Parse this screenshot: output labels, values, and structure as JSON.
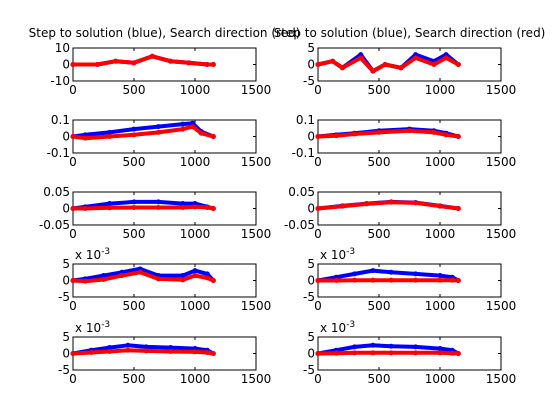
{
  "colors": {
    "step": "#0000ff",
    "direction": "#ff0000",
    "axis": "#000000",
    "background": "#ffffff"
  },
  "chart_data": [
    {
      "type": "scatter",
      "title": "Step to solution (blue), Search direction (red)",
      "xlim": [
        0,
        1500
      ],
      "ylim": [
        -10,
        10
      ],
      "xticks": [
        "0",
        "500",
        "1000",
        "1500"
      ],
      "yticks": [
        "-10",
        "0",
        "10"
      ],
      "exponent": "",
      "series": [
        {
          "role": "step",
          "x": [
            0,
            200,
            350,
            500,
            650,
            800,
            950,
            1100,
            1150
          ],
          "y": [
            0,
            0,
            2,
            1,
            5,
            2,
            1,
            0,
            0
          ]
        },
        {
          "role": "direction",
          "x": [
            0,
            200,
            350,
            500,
            650,
            800,
            950,
            1100,
            1150
          ],
          "y": [
            0,
            0,
            2,
            1,
            5,
            2,
            1,
            0,
            0
          ]
        }
      ]
    },
    {
      "type": "scatter",
      "title": "Step to solution (blue), Search direction (red)",
      "xlim": [
        0,
        1500
      ],
      "ylim": [
        -5,
        5
      ],
      "xticks": [
        "0",
        "500",
        "1000",
        "1500"
      ],
      "yticks": [
        "-5",
        "0",
        "5"
      ],
      "exponent": "",
      "series": [
        {
          "role": "step",
          "x": [
            0,
            120,
            200,
            350,
            450,
            550,
            680,
            800,
            950,
            1050,
            1150
          ],
          "y": [
            0,
            1,
            -1,
            3,
            -2,
            0,
            -1,
            3,
            1,
            3,
            0
          ]
        },
        {
          "role": "direction",
          "x": [
            0,
            120,
            200,
            350,
            450,
            550,
            680,
            800,
            950,
            1050,
            1150
          ],
          "y": [
            0,
            1,
            -1,
            2,
            -2,
            0,
            -1,
            2,
            0,
            2,
            0
          ]
        }
      ]
    },
    {
      "type": "scatter",
      "title": "",
      "xlim": [
        0,
        1500
      ],
      "ylim": [
        -0.1,
        0.1
      ],
      "xticks": [
        "0",
        "500",
        "1000",
        "1500"
      ],
      "yticks": [
        "-0.1",
        "0",
        "0.1"
      ],
      "exponent": "",
      "series": [
        {
          "role": "step",
          "x": [
            0,
            100,
            300,
            500,
            700,
            900,
            980,
            1050,
            1150
          ],
          "y": [
            0,
            0.01,
            0.025,
            0.045,
            0.06,
            0.075,
            0.08,
            0.03,
            0
          ]
        },
        {
          "role": "direction",
          "x": [
            0,
            100,
            300,
            500,
            700,
            900,
            980,
            1050,
            1150
          ],
          "y": [
            0,
            -0.01,
            0,
            0.01,
            0.025,
            0.045,
            0.06,
            0.02,
            0
          ]
        }
      ]
    },
    {
      "type": "scatter",
      "title": "",
      "xlim": [
        0,
        1500
      ],
      "ylim": [
        -0.1,
        0.1
      ],
      "xticks": [
        "0",
        "500",
        "1000",
        "1500"
      ],
      "yticks": [
        "-0.1",
        "0",
        "0.1"
      ],
      "exponent": "",
      "series": [
        {
          "role": "step",
          "x": [
            0,
            150,
            300,
            500,
            750,
            950,
            1050,
            1150
          ],
          "y": [
            0,
            0.01,
            0.02,
            0.035,
            0.045,
            0.035,
            0.02,
            0
          ]
        },
        {
          "role": "direction",
          "x": [
            0,
            150,
            300,
            500,
            750,
            950,
            1050,
            1150
          ],
          "y": [
            0,
            0.005,
            0.015,
            0.025,
            0.035,
            0.025,
            0.01,
            0
          ]
        }
      ]
    },
    {
      "type": "scatter",
      "title": "",
      "xlim": [
        0,
        1500
      ],
      "ylim": [
        -0.05,
        0.05
      ],
      "xticks": [
        "0",
        "500",
        "1000",
        "1500"
      ],
      "yticks": [
        "-0.05",
        "0",
        "0.05"
      ],
      "exponent": "",
      "series": [
        {
          "role": "step",
          "x": [
            0,
            100,
            300,
            500,
            700,
            900,
            1000,
            1100,
            1150
          ],
          "y": [
            0,
            0.005,
            0.015,
            0.02,
            0.02,
            0.015,
            0.015,
            0.005,
            0
          ]
        },
        {
          "role": "direction",
          "x": [
            0,
            100,
            300,
            500,
            700,
            900,
            1000,
            1100,
            1150
          ],
          "y": [
            0,
            0,
            0.002,
            0.003,
            0.003,
            0.003,
            0.005,
            0.003,
            0
          ]
        }
      ]
    },
    {
      "type": "scatter",
      "title": "",
      "xlim": [
        0,
        1500
      ],
      "ylim": [
        -0.05,
        0.05
      ],
      "xticks": [
        "0",
        "500",
        "1000",
        "1500"
      ],
      "yticks": [
        "-0.05",
        "0",
        "0.05"
      ],
      "exponent": "",
      "series": [
        {
          "role": "step",
          "x": [
            0,
            200,
            400,
            600,
            800,
            1000,
            1150
          ],
          "y": [
            0,
            0.008,
            0.015,
            0.02,
            0.018,
            0.008,
            0
          ]
        },
        {
          "role": "direction",
          "x": [
            0,
            200,
            400,
            600,
            800,
            1000,
            1150
          ],
          "y": [
            0,
            0.007,
            0.014,
            0.019,
            0.017,
            0.007,
            0
          ]
        }
      ]
    },
    {
      "type": "scatter",
      "title": "",
      "xlim": [
        0,
        1500
      ],
      "ylim": [
        -5,
        5
      ],
      "xticks": [
        "0",
        "500",
        "1000",
        "1500"
      ],
      "yticks": [
        "-5",
        "0",
        "5"
      ],
      "exponent": "x 10-3",
      "series": [
        {
          "role": "step",
          "x": [
            0,
            100,
            250,
            400,
            550,
            700,
            900,
            1000,
            1100,
            1150
          ],
          "y": [
            0,
            0.5,
            1.5,
            2.5,
            3.5,
            1.5,
            1.5,
            3,
            2,
            0
          ]
        },
        {
          "role": "direction",
          "x": [
            0,
            100,
            250,
            400,
            550,
            700,
            900,
            1000,
            1100,
            1150
          ],
          "y": [
            0,
            -0.2,
            0.3,
            1.5,
            2.5,
            0.5,
            0.2,
            1.5,
            0.8,
            0
          ]
        }
      ]
    },
    {
      "type": "scatter",
      "title": "",
      "xlim": [
        0,
        1500
      ],
      "ylim": [
        -5,
        5
      ],
      "xticks": [
        "0",
        "500",
        "1000",
        "1500"
      ],
      "yticks": [
        "-5",
        "0",
        "5"
      ],
      "exponent": "x 10-3",
      "series": [
        {
          "role": "step",
          "x": [
            0,
            150,
            300,
            450,
            600,
            800,
            1000,
            1100,
            1150
          ],
          "y": [
            0,
            1,
            2,
            3,
            2.5,
            2,
            1.5,
            1,
            0
          ]
        },
        {
          "role": "direction",
          "x": [
            0,
            150,
            300,
            450,
            600,
            800,
            1000,
            1100,
            1150
          ],
          "y": [
            0,
            0,
            0.1,
            0.1,
            0.1,
            0.1,
            0.1,
            0.1,
            0
          ]
        }
      ]
    },
    {
      "type": "scatter",
      "title": "",
      "xlim": [
        0,
        1500
      ],
      "ylim": [
        -5,
        5
      ],
      "xticks": [
        "0",
        "500",
        "1000",
        "1500"
      ],
      "yticks": [
        "-5",
        "0",
        "5"
      ],
      "exponent": "x 10-3",
      "series": [
        {
          "role": "step",
          "x": [
            0,
            150,
            300,
            450,
            600,
            800,
            1000,
            1100,
            1150
          ],
          "y": [
            0,
            1,
            1.8,
            2.5,
            2,
            1.8,
            1.5,
            1,
            0
          ]
        },
        {
          "role": "direction",
          "x": [
            0,
            150,
            300,
            450,
            600,
            800,
            1000,
            1100,
            1150
          ],
          "y": [
            0,
            0.3,
            0.6,
            1,
            0.8,
            0.6,
            0.5,
            0.3,
            0
          ]
        }
      ]
    },
    {
      "type": "scatter",
      "title": "",
      "xlim": [
        0,
        1500
      ],
      "ylim": [
        -5,
        5
      ],
      "xticks": [
        "0",
        "500",
        "1000",
        "1500"
      ],
      "yticks": [
        "-5",
        "0",
        "5"
      ],
      "exponent": "x 10-3",
      "series": [
        {
          "role": "step",
          "x": [
            0,
            150,
            300,
            450,
            600,
            800,
            1000,
            1100,
            1150
          ],
          "y": [
            0,
            1,
            2,
            2.5,
            2.2,
            2,
            1.5,
            1,
            0
          ]
        },
        {
          "role": "direction",
          "x": [
            0,
            150,
            300,
            450,
            600,
            800,
            1000,
            1100,
            1150
          ],
          "y": [
            0,
            0.1,
            0.2,
            0.2,
            0.2,
            0.2,
            0.2,
            0.1,
            0
          ]
        }
      ]
    }
  ]
}
